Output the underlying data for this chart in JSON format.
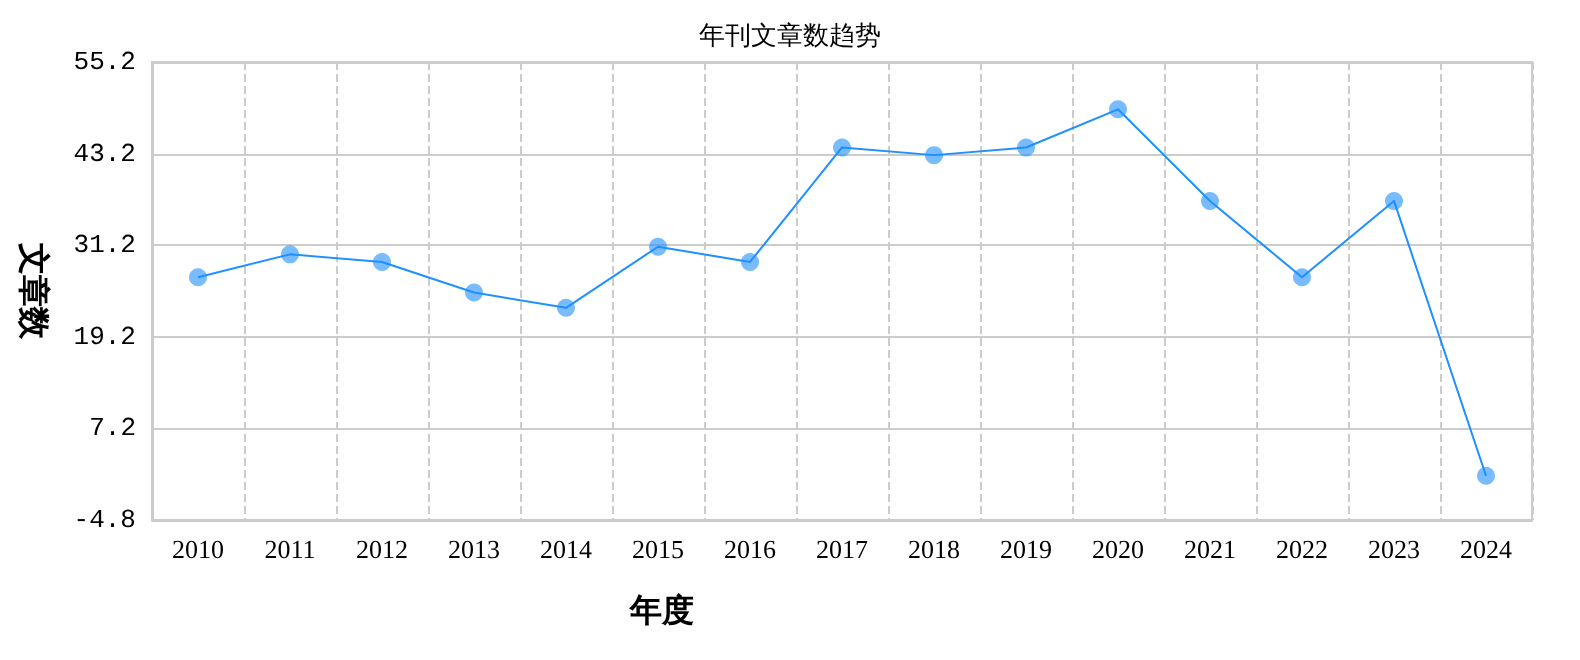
{
  "chart_data": {
    "type": "line",
    "title": "年刊文章数趋势",
    "xlabel": "年度",
    "ylabel": "文章数",
    "categories": [
      "2010",
      "2011",
      "2012",
      "2013",
      "2014",
      "2015",
      "2016",
      "2017",
      "2018",
      "2019",
      "2020",
      "2021",
      "2022",
      "2023",
      "2024"
    ],
    "series": [
      {
        "color": "#1e90ff",
        "values": [
          27,
          30,
          29,
          25,
          23,
          31,
          29,
          44,
          43,
          44,
          49,
          37,
          27,
          37,
          1
        ]
      }
    ],
    "ylim": [
      -4.8,
      55.2
    ],
    "yticks": [
      -4.8,
      7.2,
      19.2,
      31.2,
      43.2,
      55.2
    ],
    "grid": true,
    "marker": "circle",
    "line_style": "solid"
  }
}
